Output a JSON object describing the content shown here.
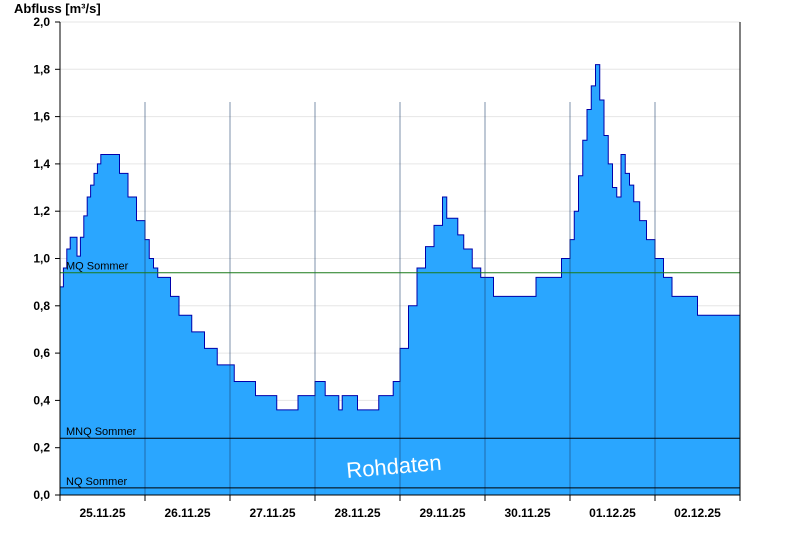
{
  "chart_data": {
    "type": "area",
    "title": "",
    "ylabel": "Abfluss [m³/s]",
    "xlabel": "",
    "ylim": [
      0,
      2.0
    ],
    "xlim": [
      0,
      8
    ],
    "y_ticks": [
      "0,0",
      "0,2",
      "0,4",
      "0,6",
      "0,8",
      "1,0",
      "1,2",
      "1,4",
      "1,6",
      "1,8",
      "2,0"
    ],
    "x_tick_labels": [
      "25.11.25",
      "26.11.25",
      "27.11.25",
      "28.11.25",
      "29.11.25",
      "30.11.25",
      "01.12.25",
      "02.12.25"
    ],
    "grid": true,
    "series": [
      {
        "color": "#2aa6ff",
        "x": [
          0.0,
          0.04,
          0.08,
          0.12,
          0.16,
          0.2,
          0.24,
          0.28,
          0.32,
          0.36,
          0.4,
          0.44,
          0.48,
          0.55,
          0.6,
          0.7,
          0.8,
          0.9,
          1.0,
          1.05,
          1.1,
          1.15,
          1.2,
          1.3,
          1.4,
          1.55,
          1.7,
          1.85,
          2.05,
          2.3,
          2.55,
          2.8,
          3.0,
          3.12,
          3.22,
          3.28,
          3.32,
          3.4,
          3.5,
          3.75,
          3.92,
          4.0,
          4.1,
          4.2,
          4.3,
          4.4,
          4.5,
          4.55,
          4.62,
          4.68,
          4.75,
          4.85,
          4.95,
          5.1,
          5.3,
          5.6,
          5.9,
          6.0,
          6.05,
          6.1,
          6.15,
          6.2,
          6.25,
          6.3,
          6.35,
          6.4,
          6.45,
          6.5,
          6.55,
          6.6,
          6.65,
          6.7,
          6.75,
          6.82,
          6.9,
          7.0,
          7.1,
          7.2,
          7.3,
          7.5,
          7.7,
          7.8,
          8.0
        ],
        "y": [
          0.88,
          0.96,
          1.04,
          1.09,
          1.09,
          1.01,
          1.09,
          1.18,
          1.26,
          1.31,
          1.36,
          1.4,
          1.44,
          1.44,
          1.44,
          1.36,
          1.26,
          1.16,
          1.08,
          1.0,
          0.96,
          0.92,
          0.92,
          0.84,
          0.76,
          0.69,
          0.62,
          0.55,
          0.48,
          0.42,
          0.36,
          0.42,
          0.48,
          0.42,
          0.42,
          0.36,
          0.42,
          0.42,
          0.36,
          0.42,
          0.48,
          0.62,
          0.8,
          0.96,
          1.05,
          1.14,
          1.26,
          1.17,
          1.17,
          1.1,
          1.04,
          0.96,
          0.92,
          0.84,
          0.84,
          0.92,
          1.0,
          1.08,
          1.2,
          1.35,
          1.5,
          1.63,
          1.73,
          1.82,
          1.67,
          1.52,
          1.4,
          1.3,
          1.26,
          1.44,
          1.36,
          1.31,
          1.24,
          1.16,
          1.08,
          1.0,
          0.92,
          0.84,
          0.84,
          0.76,
          0.76,
          0.76,
          0.76
        ]
      }
    ],
    "reference_lines": [
      {
        "label": "MQ Sommer",
        "value": 0.94,
        "color": "#1a7a1a"
      },
      {
        "label": "MNQ Sommer",
        "value": 0.24,
        "color": "#000000"
      },
      {
        "label": "NQ Sommer",
        "value": 0.03,
        "color": "#000000"
      }
    ],
    "annotations": [
      "Rohdaten"
    ]
  }
}
